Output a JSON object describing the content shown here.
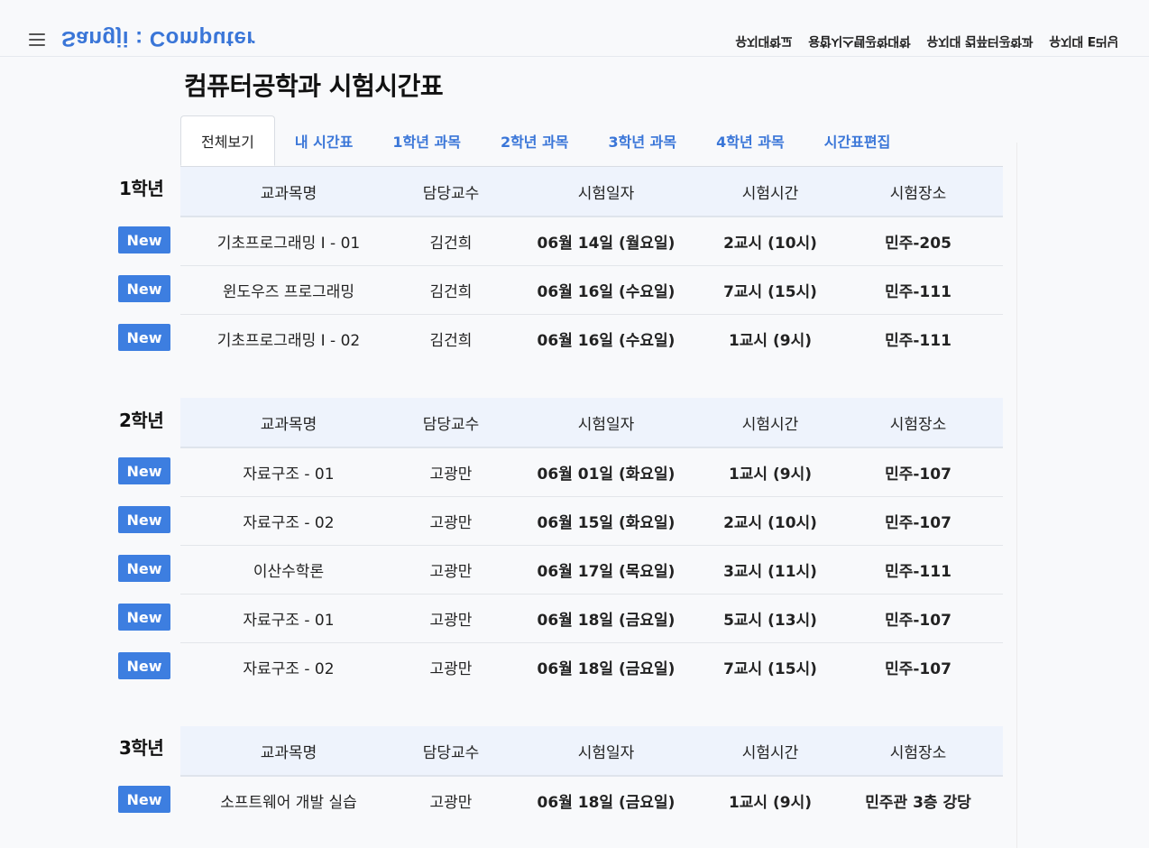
{
  "header": {
    "brand": "Sangji : Computer",
    "nav": [
      "유지대학교",
      "융합시스템공학대학",
      "유지대 컴퓨터공학과",
      "유지대 E러닝"
    ]
  },
  "page": {
    "title": "컴퓨터공학과 시험시간표"
  },
  "tabs": [
    "전체보기",
    "내 시간표",
    "1학년 과목",
    "2학년 과목",
    "3학년 과목",
    "4학년 과목",
    "시간표편집"
  ],
  "table_headers": [
    "교과목명",
    "담당교수",
    "시험일자",
    "시험시간",
    "시험장소"
  ],
  "badge_label": "New",
  "sections": [
    {
      "year": "1학년",
      "rows": [
        [
          "기초프로그래밍 I - 01",
          "김건희",
          "06월 14일 (월요일)",
          "2교시 (10시)",
          "민주-205"
        ],
        [
          "윈도우즈 프로그래밍",
          "김건희",
          "06월 16일 (수요일)",
          "7교시 (15시)",
          "민주-111"
        ],
        [
          "기초프로그래밍 I - 02",
          "김건희",
          "06월 16일 (수요일)",
          "1교시 (9시)",
          "민주-111"
        ]
      ]
    },
    {
      "year": "2학년",
      "rows": [
        [
          "자료구조 - 01",
          "고광만",
          "06월 01일 (화요일)",
          "1교시 (9시)",
          "민주-107"
        ],
        [
          "자료구조 - 02",
          "고광만",
          "06월 15일 (화요일)",
          "2교시 (10시)",
          "민주-107"
        ],
        [
          "이산수학론",
          "고광만",
          "06월 17일 (목요일)",
          "3교시 (11시)",
          "민주-111"
        ],
        [
          "자료구조 - 01",
          "고광만",
          "06월 18일 (금요일)",
          "5교시 (13시)",
          "민주-107"
        ],
        [
          "자료구조 - 02",
          "고광만",
          "06월 18일 (금요일)",
          "7교시 (15시)",
          "민주-107"
        ]
      ]
    },
    {
      "year": "3학년",
      "rows": [
        [
          "소프트웨어 개발 실습",
          "고광만",
          "06월 18일 (금요일)",
          "1교시 (9시)",
          "민주관 3층 강당"
        ]
      ]
    }
  ]
}
